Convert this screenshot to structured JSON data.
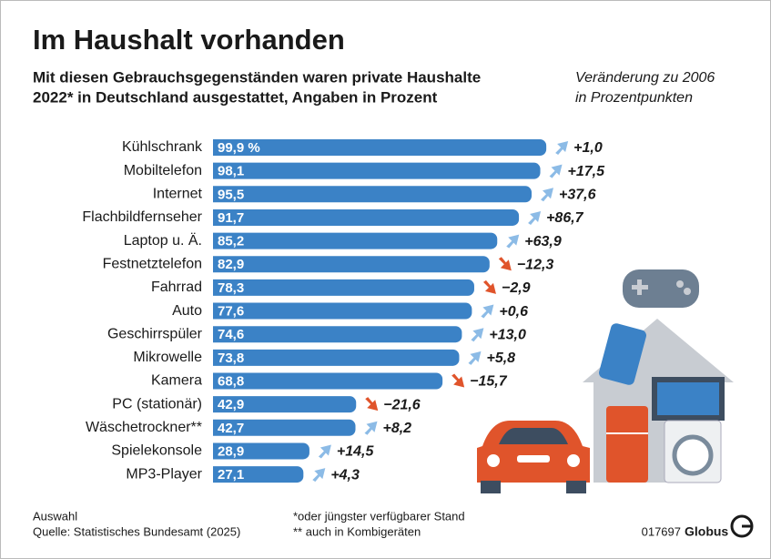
{
  "chart_data": {
    "type": "bar",
    "title": "Im Haushalt vorhanden",
    "subtitle": [
      "Mit diesen Gebrauchsgegenständen waren private Haushalte",
      "2022* in Deutschland ausgestattet, Angaben in Prozent"
    ],
    "change_header": [
      "Veränderung zu 2006",
      "in Prozentpunkten"
    ],
    "categories": [
      "Kühlschrank",
      "Mobiltelefon",
      "Internet",
      "Flachbildfernseher",
      "Laptop u. Ä.",
      "Festnetztelefon",
      "Fahrrad",
      "Auto",
      "Geschirrspüler",
      "Mikrowelle",
      "Kamera",
      "PC (stationär)",
      "Wäschetrockner**",
      "Spielekonsole",
      "MP3-Player"
    ],
    "values": [
      99.9,
      98.1,
      95.5,
      91.7,
      85.2,
      82.9,
      78.3,
      77.6,
      74.6,
      73.8,
      68.8,
      42.9,
      42.7,
      28.9,
      27.1
    ],
    "value_labels": [
      "99,9 %",
      "98,1",
      "95,5",
      "91,7",
      "85,2",
      "82,9",
      "78,3",
      "77,6",
      "74,6",
      "73,8",
      "68,8",
      "42,9",
      "42,7",
      "28,9",
      "27,1"
    ],
    "changes": [
      1.0,
      17.5,
      37.6,
      86.7,
      63.9,
      -12.3,
      -2.9,
      0.6,
      13.0,
      5.8,
      -15.7,
      -21.6,
      8.2,
      14.5,
      4.3
    ],
    "change_labels": [
      "+1,0",
      "+17,5",
      "+37,6",
      "+86,7",
      "+63,9",
      "−12,3",
      "−2,9",
      "+0,6",
      "+13,0",
      "+5,8",
      "−15,7",
      "−21,6",
      "+8,2",
      "+14,5",
      "+4,3"
    ],
    "color": "#3b82c6",
    "up_color": "#8cbbe6",
    "down_color": "#e0542b",
    "notes": [
      "Auswahl",
      "Quelle: Statistisches Bundesamt (2025)"
    ],
    "footnotes": [
      "*oder jüngster verfügbarer Stand",
      "** auch in Kombigeräten"
    ],
    "code": "017697",
    "brand": "Globus"
  }
}
